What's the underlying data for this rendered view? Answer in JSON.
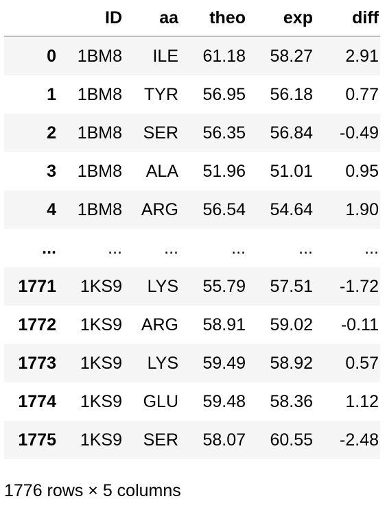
{
  "table": {
    "columns": [
      "",
      "ID",
      "aa",
      "theo",
      "exp",
      "diff"
    ],
    "rows": [
      {
        "index": "0",
        "cells": [
          "1BM8",
          "ILE",
          "61.18",
          "58.27",
          "2.91"
        ]
      },
      {
        "index": "1",
        "cells": [
          "1BM8",
          "TYR",
          "56.95",
          "56.18",
          "0.77"
        ]
      },
      {
        "index": "2",
        "cells": [
          "1BM8",
          "SER",
          "56.35",
          "56.84",
          "-0.49"
        ]
      },
      {
        "index": "3",
        "cells": [
          "1BM8",
          "ALA",
          "51.96",
          "51.01",
          "0.95"
        ]
      },
      {
        "index": "4",
        "cells": [
          "1BM8",
          "ARG",
          "56.54",
          "54.64",
          "1.90"
        ]
      },
      {
        "index": "...",
        "cells": [
          "...",
          "...",
          "...",
          "...",
          "..."
        ]
      },
      {
        "index": "1771",
        "cells": [
          "1KS9",
          "LYS",
          "55.79",
          "57.51",
          "-1.72"
        ]
      },
      {
        "index": "1772",
        "cells": [
          "1KS9",
          "ARG",
          "58.91",
          "59.02",
          "-0.11"
        ]
      },
      {
        "index": "1773",
        "cells": [
          "1KS9",
          "LYS",
          "59.49",
          "58.92",
          "0.57"
        ]
      },
      {
        "index": "1774",
        "cells": [
          "1KS9",
          "GLU",
          "59.48",
          "58.36",
          "1.12"
        ]
      },
      {
        "index": "1775",
        "cells": [
          "1KS9",
          "SER",
          "58.07",
          "60.55",
          "-2.48"
        ]
      }
    ]
  },
  "footer": {
    "shape_text": "1776 rows × 5 columns"
  },
  "colors": {
    "stripe": "#f5f5f5",
    "header_rule": "#bdbdbd",
    "text": "#000000"
  }
}
